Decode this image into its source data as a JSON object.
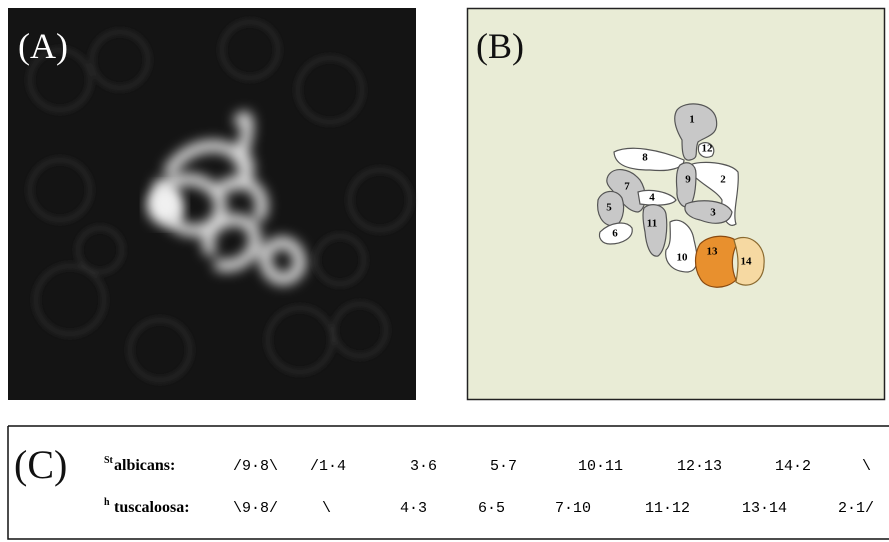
{
  "panels": {
    "a": {
      "label": "(A)"
    },
    "b": {
      "label": "(B)",
      "chromosomes": [
        "1",
        "2",
        "3",
        "4",
        "5",
        "6",
        "7",
        "8",
        "9",
        "10",
        "11",
        "12",
        "13",
        "14"
      ]
    },
    "c": {
      "label": "(C)",
      "rows": [
        {
          "prefix": "St",
          "name": "albicans:",
          "cells": [
            "/9·8\\",
            "/1·4",
            "3·6",
            "5·7",
            "10·11",
            "12·13",
            "14·2",
            "\\"
          ]
        },
        {
          "prefix": "h",
          "name": "tuscaloosa:",
          "cells": [
            "\\9·8/",
            "\\",
            "4·3",
            "6·5",
            "7·10",
            "11·12",
            "13·14",
            "2·1/"
          ]
        }
      ]
    }
  }
}
